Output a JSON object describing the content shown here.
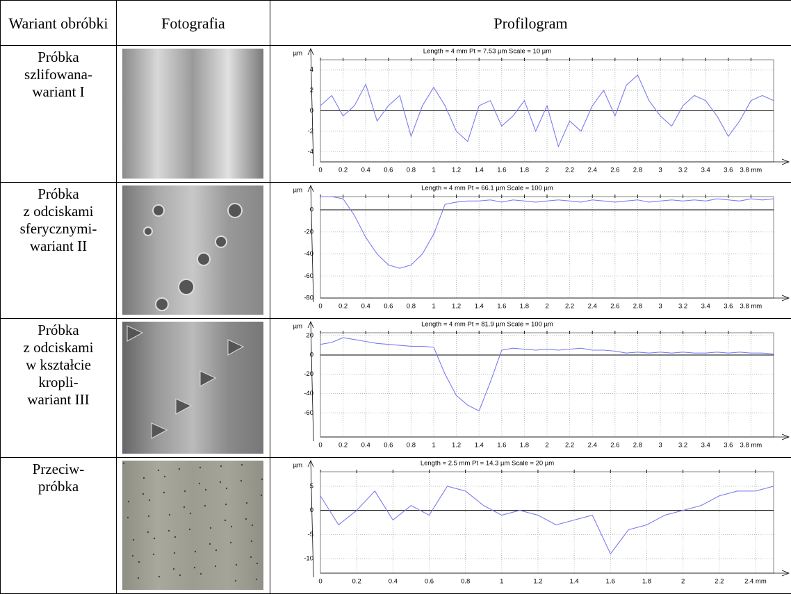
{
  "table": {
    "header": [
      "Wariant obróbki",
      "Fotografia",
      "Profilogram"
    ],
    "rows": [
      {
        "label": "Próbka\nszlifowana-\nwariant I",
        "chart_data": {
          "type": "line",
          "title": "Length = 4 mm  Pt = 7.53 µm  Scale = 10 µm",
          "y_label": "µm",
          "color": "#7b7bef",
          "grid": true,
          "xlim": [
            0,
            4
          ],
          "ylim": [
            -5,
            5
          ],
          "xticks": [
            0,
            0.2,
            0.4,
            0.6,
            0.8,
            1,
            1.2,
            1.4,
            1.6,
            1.8,
            2,
            2.2,
            2.4,
            2.6,
            2.8,
            3,
            3.2,
            3.4,
            3.6,
            {
              "value": 3.8,
              "label": "3.8 mm"
            }
          ],
          "yticks": [
            -4,
            -2,
            0,
            2,
            4
          ],
          "x": [
            0,
            0.1,
            0.2,
            0.3,
            0.4,
            0.5,
            0.6,
            0.7,
            0.8,
            0.9,
            1,
            1.1,
            1.2,
            1.3,
            1.4,
            1.5,
            1.6,
            1.7,
            1.8,
            1.9,
            2,
            2.1,
            2.2,
            2.3,
            2.4,
            2.5,
            2.6,
            2.7,
            2.8,
            2.9,
            3,
            3.1,
            3.2,
            3.3,
            3.4,
            3.5,
            3.6,
            3.7,
            3.8,
            3.9,
            4
          ],
          "values": [
            0.5,
            1.5,
            -0.5,
            0.5,
            2.6,
            -1,
            0.5,
            1.5,
            -2.5,
            0.5,
            2.3,
            0.5,
            -2,
            -3,
            0.5,
            1,
            -1.5,
            -0.5,
            1,
            -2,
            0.5,
            -3.5,
            -1,
            -2,
            0.5,
            2,
            -0.5,
            2.5,
            3.5,
            1,
            -0.5,
            -1.5,
            0.5,
            1.5,
            1,
            -0.5,
            -2.5,
            -1,
            1,
            1.5,
            1
          ]
        }
      },
      {
        "label": "Próbka\nz odciskami\nsferycznymi-\nwariant II",
        "chart_data": {
          "type": "line",
          "title": "Length = 4 mm  Pt = 66.1 µm  Scale = 100 µm",
          "y_label": "µm",
          "color": "#7b7bef",
          "grid": true,
          "xlim": [
            0,
            4
          ],
          "ylim": [
            -80,
            12
          ],
          "xticks": [
            0,
            0.2,
            0.4,
            0.6,
            0.8,
            1,
            1.2,
            1.4,
            1.6,
            1.8,
            2,
            2.2,
            2.4,
            2.6,
            2.8,
            3,
            3.2,
            3.4,
            3.6,
            {
              "value": 3.8,
              "label": "3.8 mm"
            }
          ],
          "yticks": [
            -80,
            -60,
            -40,
            -20,
            0
          ],
          "x": [
            0,
            0.1,
            0.2,
            0.3,
            0.4,
            0.5,
            0.6,
            0.7,
            0.8,
            0.9,
            1,
            1.1,
            1.2,
            1.3,
            1.4,
            1.5,
            1.6,
            1.7,
            1.8,
            1.9,
            2,
            2.1,
            2.2,
            2.3,
            2.4,
            2.5,
            2.6,
            2.7,
            2.8,
            2.9,
            3,
            3.1,
            3.2,
            3.3,
            3.4,
            3.5,
            3.6,
            3.7,
            3.8,
            3.9,
            4
          ],
          "values": [
            12,
            12,
            10,
            -5,
            -25,
            -40,
            -50,
            -53,
            -50,
            -40,
            -22,
            5,
            7,
            8,
            8,
            9,
            7,
            9,
            8,
            7,
            8,
            9,
            8,
            7,
            9,
            8,
            7,
            8,
            9,
            7,
            8,
            9,
            8,
            9,
            8,
            10,
            9,
            8,
            10,
            9,
            10
          ]
        }
      },
      {
        "label": "Próbka\nz odciskami\nw kształcie\nkropli-\nwariant III",
        "chart_data": {
          "type": "line",
          "title": "Length = 4 mm  Pt = 81.9 µm  Scale = 100 µm",
          "y_label": "µm",
          "color": "#7b7bef",
          "grid": true,
          "xlim": [
            0,
            4
          ],
          "ylim": [
            -85,
            23
          ],
          "xticks": [
            0,
            0.2,
            0.4,
            0.6,
            0.8,
            1,
            1.2,
            1.4,
            1.6,
            1.8,
            2,
            2.2,
            2.4,
            2.6,
            2.8,
            3,
            3.2,
            3.4,
            3.6,
            {
              "value": 3.8,
              "label": "3.8 mm"
            }
          ],
          "yticks": [
            -60,
            -40,
            -20,
            0,
            20
          ],
          "x": [
            0,
            0.1,
            0.2,
            0.3,
            0.4,
            0.5,
            0.6,
            0.7,
            0.8,
            0.9,
            1,
            1.1,
            1.2,
            1.3,
            1.4,
            1.5,
            1.6,
            1.7,
            1.8,
            1.9,
            2,
            2.1,
            2.2,
            2.3,
            2.4,
            2.5,
            2.6,
            2.7,
            2.8,
            2.9,
            3,
            3.1,
            3.2,
            3.3,
            3.4,
            3.5,
            3.6,
            3.7,
            3.8,
            3.9,
            4
          ],
          "values": [
            11,
            13,
            18,
            16,
            14,
            12,
            11,
            10,
            9,
            9,
            8,
            -20,
            -42,
            -52,
            -58,
            -28,
            5,
            7,
            6,
            5,
            6,
            5,
            6,
            7,
            5,
            5,
            4,
            2,
            3,
            2,
            3,
            2,
            3,
            2,
            2,
            3,
            2,
            3,
            2,
            2,
            1
          ]
        }
      },
      {
        "label": "Przeciw-\npróbka",
        "chart_data": {
          "type": "line",
          "title": "Length = 2.5 mm  Pt = 14.3 µm  Scale = 20 µm",
          "y_label": "µm",
          "color": "#7b7bef",
          "grid": true,
          "xlim": [
            0,
            2.5
          ],
          "ylim": [
            -13,
            8
          ],
          "xticks": [
            0,
            0.2,
            0.4,
            0.6,
            0.8,
            1,
            1.2,
            1.4,
            1.6,
            1.8,
            2,
            2.2,
            {
              "value": 2.4,
              "label": "2.4 mm"
            }
          ],
          "yticks": [
            -10,
            -5,
            0,
            5
          ],
          "x": [
            0,
            0.1,
            0.2,
            0.3,
            0.4,
            0.5,
            0.6,
            0.7,
            0.8,
            0.9,
            1,
            1.1,
            1.2,
            1.3,
            1.4,
            1.5,
            1.6,
            1.7,
            1.8,
            1.9,
            2,
            2.1,
            2.2,
            2.3,
            2.4,
            2.5
          ],
          "values": [
            3,
            -3,
            0,
            4,
            -2,
            1,
            -1,
            5,
            4,
            1,
            -1,
            0,
            -1,
            -3,
            -2,
            -1,
            -9,
            -4,
            -3,
            -1,
            0,
            1,
            3,
            4,
            4,
            5
          ]
        }
      }
    ]
  }
}
